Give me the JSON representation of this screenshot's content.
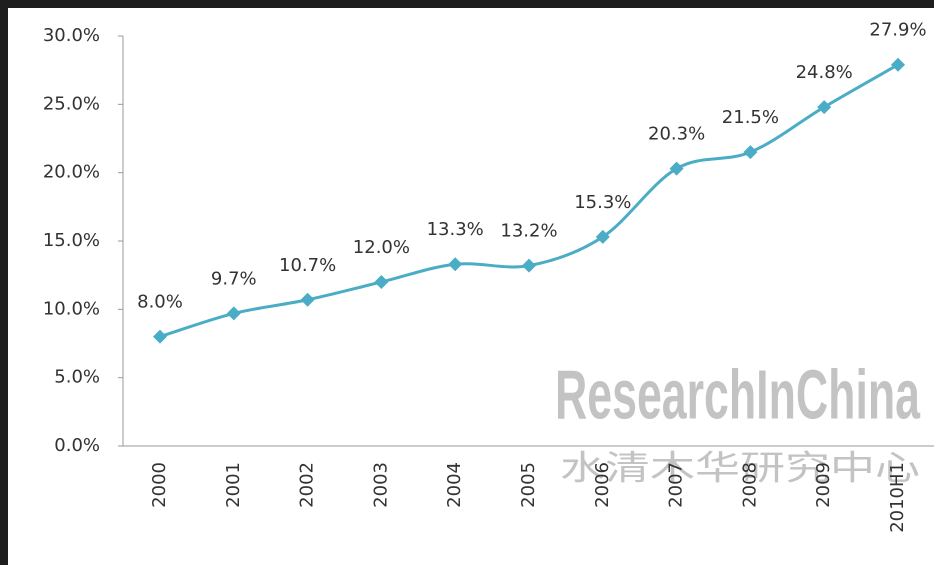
{
  "chart_data": {
    "type": "line",
    "categories": [
      "2000",
      "2001",
      "2002",
      "2003",
      "2004",
      "2005",
      "2006",
      "2007",
      "2008",
      "2009",
      "2010H1"
    ],
    "series": [
      {
        "color": "#4bacc6",
        "values": [
          8.0,
          9.7,
          10.7,
          12.0,
          13.3,
          13.2,
          15.3,
          20.3,
          21.5,
          24.8,
          27.9
        ],
        "value_labels": [
          "8.0%",
          "9.7%",
          "10.7%",
          "12.0%",
          "13.3%",
          "13.2%",
          "15.3%",
          "20.3%",
          "21.5%",
          "24.8%",
          "27.9%"
        ]
      }
    ],
    "ylim": [
      0,
      30
    ],
    "yticks": [
      {
        "value": 0,
        "label": "0.0%"
      },
      {
        "value": 5,
        "label": "5.0%"
      },
      {
        "value": 10,
        "label": "10.0%"
      },
      {
        "value": 15,
        "label": "15.0%"
      },
      {
        "value": 20,
        "label": "20.0%"
      },
      {
        "value": 25,
        "label": "25.0%"
      },
      {
        "value": 30,
        "label": "30.0%"
      }
    ],
    "grid": false,
    "watermark": "ResearchInChina",
    "watermark_subtitle": "水清木华研究中心"
  }
}
